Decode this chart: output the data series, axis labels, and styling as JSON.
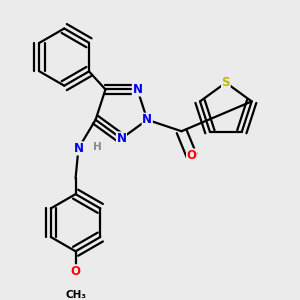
{
  "bg_color": "#ebebeb",
  "bond_color": "#000000",
  "bond_width": 1.6,
  "atom_colors": {
    "N": "#0000ee",
    "O": "#ff0000",
    "S": "#bbbb00",
    "C": "#000000"
  },
  "font_size_atom": 8.5,
  "font_size_small": 7.5
}
